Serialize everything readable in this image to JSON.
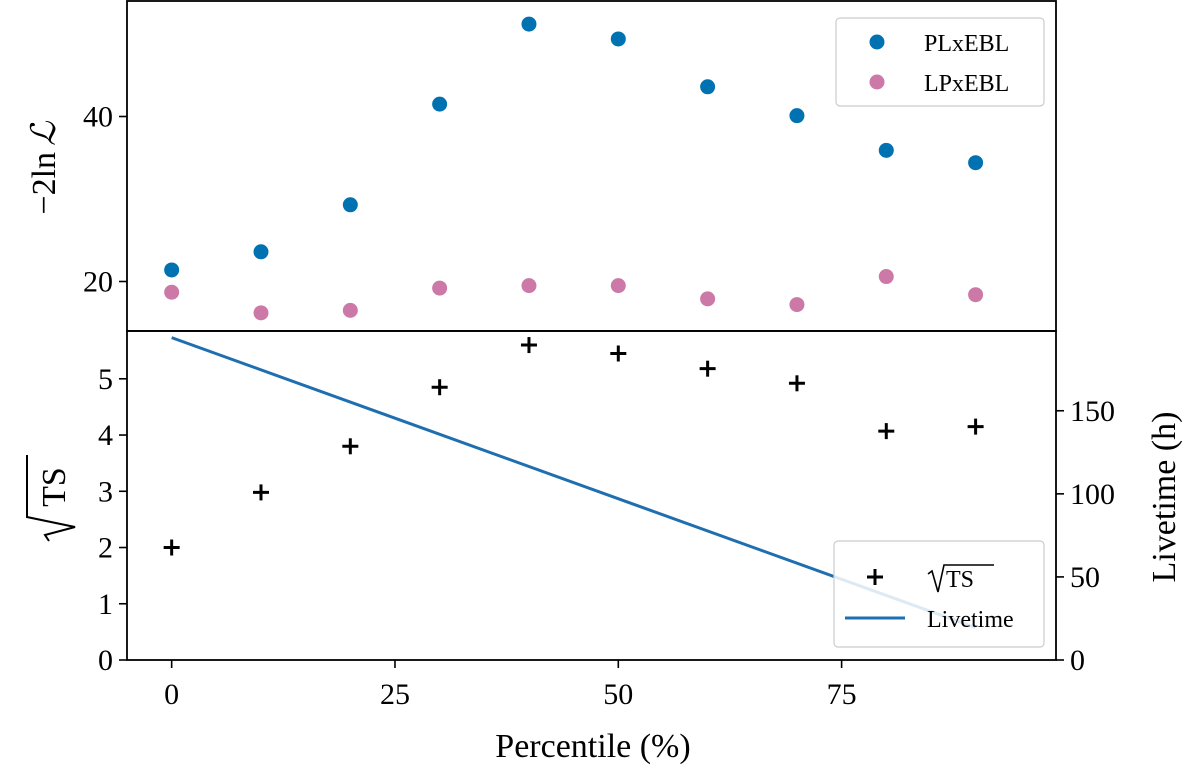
{
  "chart_data": [
    {
      "type": "scatter",
      "panel": "top",
      "ylabel": "−2ln ℒ",
      "ylim": [
        14,
        54
      ],
      "yticks": [
        20,
        40
      ],
      "xlim": [
        -5,
        99
      ],
      "legend_placement": "top-right",
      "series": [
        {
          "name": "PLxEBL",
          "color": "#0072b2",
          "x": [
            0,
            10,
            20,
            30,
            40,
            50,
            60,
            70,
            80,
            90
          ],
          "y": [
            21.4,
            23.6,
            29.3,
            41.5,
            51.2,
            49.4,
            43.6,
            40.1,
            35.9,
            34.4
          ]
        },
        {
          "name": "LPxEBL",
          "color": "#cc79a7",
          "x": [
            0,
            10,
            20,
            30,
            40,
            50,
            60,
            70,
            80,
            90
          ],
          "y": [
            18.7,
            16.2,
            16.5,
            19.2,
            19.5,
            19.5,
            17.9,
            17.2,
            20.6,
            18.4
          ]
        }
      ]
    },
    {
      "type": "scatter+line",
      "panel": "bottom",
      "title": "",
      "xlabel": "Percentile (%)",
      "xticks": [
        "0",
        "25",
        "50",
        "75"
      ],
      "xtick_values": [
        0,
        25,
        50,
        75
      ],
      "xlim": [
        -5,
        99
      ],
      "ylabel": "√TS",
      "ylim": [
        0,
        5.85
      ],
      "yticks": [
        0,
        1,
        2,
        3,
        4,
        5
      ],
      "ylabel_right": "Livetime (h)",
      "ylim_right": [
        0,
        198
      ],
      "yticks_right": [
        0,
        50,
        100,
        150
      ],
      "legend_placement": "lower-right",
      "series": [
        {
          "name": "√TS",
          "marker": "plus",
          "color": "#000000",
          "axis": "left",
          "x": [
            0,
            10,
            20,
            30,
            40,
            50,
            60,
            70,
            80,
            90
          ],
          "y": [
            2.0,
            2.98,
            3.8,
            4.85,
            5.6,
            5.45,
            5.18,
            4.92,
            4.07,
            4.15
          ]
        },
        {
          "name": "Livetime",
          "color": "#1f6fb0",
          "axis": "right",
          "x": [
            0,
            90
          ],
          "y": [
            194,
            19.5
          ]
        }
      ]
    }
  ],
  "labels": {
    "top_ylabel_prefix": "−2ln",
    "top_ylabel_symbol": "ℒ",
    "bottom_ylabel_text": "TS",
    "legend_ts_text": "TS"
  }
}
